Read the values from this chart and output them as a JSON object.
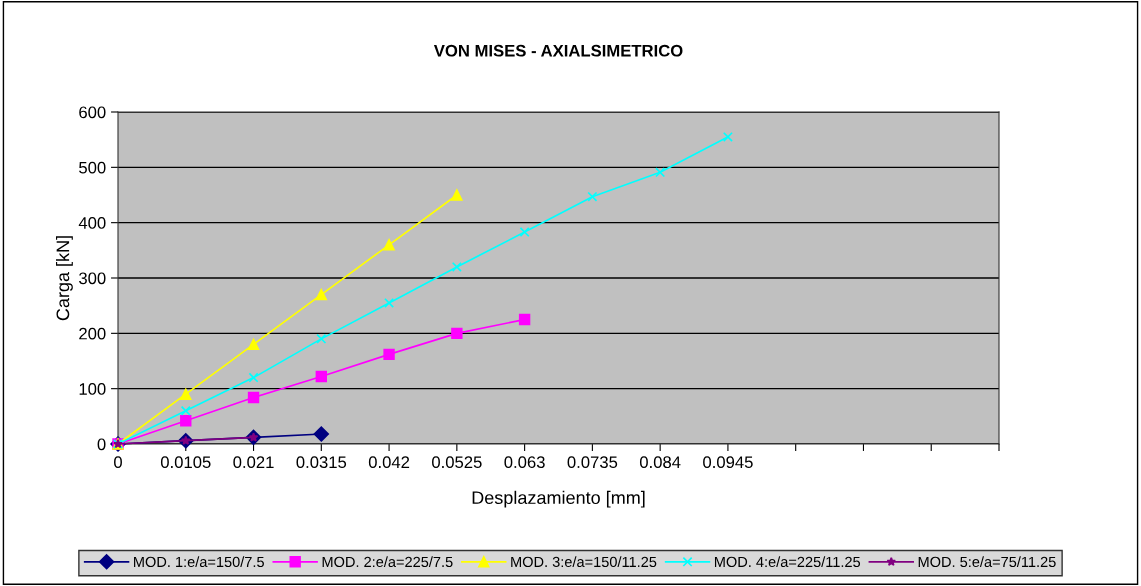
{
  "chart_data": {
    "type": "line",
    "title": "VON MISES - AXIALSIMETRICO",
    "xlabel": "Desplazamiento [mm]",
    "ylabel": "Carga [kN]",
    "categories": [
      "0",
      "0.0105",
      "0.021",
      "0.0315",
      "0.042",
      "0.0525",
      "0.063",
      "0.0735",
      "0.084",
      "0.0945",
      null,
      null,
      null,
      null
    ],
    "series": [
      {
        "name": "MOD. 1:e/a=150/7.5",
        "color": "#000080",
        "marker": "diamond",
        "values": [
          0,
          6,
          12,
          18,
          null,
          null,
          null,
          null,
          null,
          null,
          null,
          null,
          null,
          null
        ]
      },
      {
        "name": "MOD. 2:e/a=225/7.5",
        "color": "#ff00ff",
        "marker": "square",
        "values": [
          0,
          42,
          84,
          122,
          162,
          200,
          225,
          null,
          null,
          null,
          null,
          null,
          null,
          null
        ]
      },
      {
        "name": "MOD. 3:e/a=150/11.25",
        "color": "#ffff00",
        "marker": "triangle",
        "values": [
          0,
          90,
          180,
          270,
          360,
          450,
          null,
          null,
          null,
          null,
          null,
          null,
          null,
          null
        ]
      },
      {
        "name": "MOD. 4:e/a=225/11.25",
        "color": "#00ffff",
        "marker": "cross",
        "values": [
          0,
          60,
          120,
          190,
          255,
          320,
          383,
          447,
          491,
          555,
          null,
          null,
          null,
          null
        ]
      },
      {
        "name": "MOD. 5:e/a=75/11.25",
        "color": "#800080",
        "marker": "star",
        "values": [
          0,
          6,
          12,
          null,
          null,
          null,
          null,
          null,
          null,
          null,
          null,
          null,
          null,
          null
        ]
      }
    ],
    "ylim": [
      0,
      600
    ],
    "yticks": [
      0,
      100,
      200,
      300,
      400,
      500,
      600
    ],
    "grid": "y",
    "legend": "bottom"
  }
}
